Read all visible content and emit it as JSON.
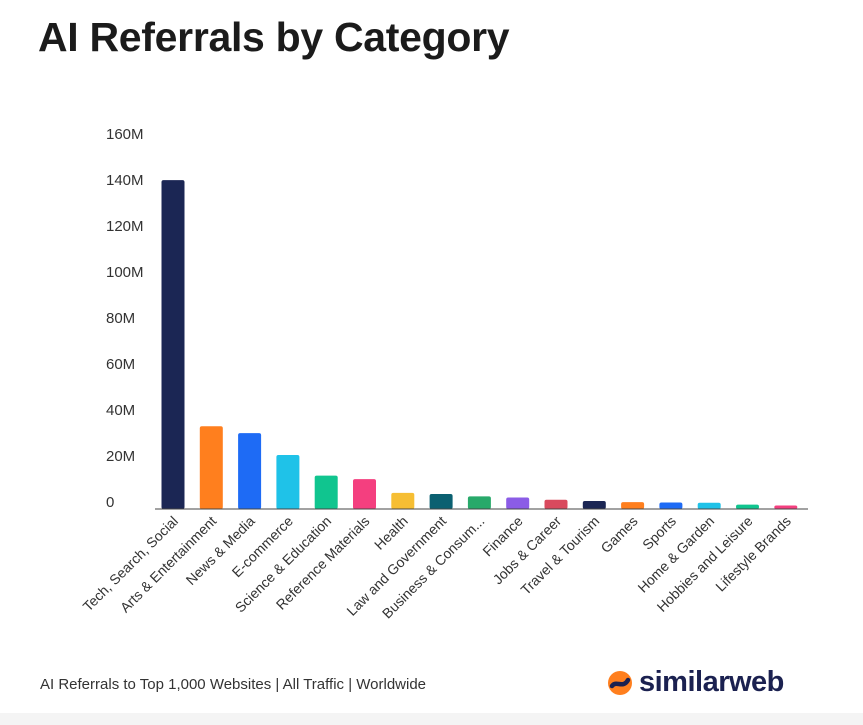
{
  "title": "AI Referrals by Category",
  "footer": "AI Referrals to Top 1,000 Websites | All Traffic | Worldwide",
  "brand": {
    "name": "similarweb",
    "icon": "similarweb-logo-icon"
  },
  "chart_data": {
    "type": "bar",
    "title": "AI Referrals by Category",
    "xlabel": "",
    "ylabel": "",
    "ylim": [
      0,
      160000000
    ],
    "ytick_values": [
      0,
      20000000,
      40000000,
      60000000,
      80000000,
      100000000,
      120000000,
      140000000,
      160000000
    ],
    "yticks": [
      "0",
      "20M",
      "40M",
      "60M",
      "80M",
      "100M",
      "120M",
      "140M",
      "160M"
    ],
    "grid": false,
    "legend": "none",
    "categories": [
      "Tech, Search, Social",
      "Arts & Entertainment",
      "News & Media",
      "E-commerce",
      "Science & Education",
      "Reference Materials",
      "Health",
      "Law and Government",
      "Business & Consum...",
      "Finance",
      "Jobs & Career",
      "Travel & Tourism",
      "Games",
      "Sports",
      "Home & Garden",
      "Hobbies and Leisure",
      "Lifestyle Brands"
    ],
    "values": [
      143000000,
      36000000,
      33000000,
      23500000,
      14500000,
      13000000,
      7000000,
      6500000,
      5500000,
      5000000,
      4000000,
      3500000,
      3000000,
      2800000,
      2700000,
      1900000,
      1500000
    ],
    "colors": [
      "#1b2654",
      "#ff7f1e",
      "#1e6bf5",
      "#1fc2e8",
      "#10c58f",
      "#f43f7f",
      "#f6be33",
      "#0b6071",
      "#28a96a",
      "#8b5ce6",
      "#d94a5e",
      "#1b2654",
      "#ff7f1e",
      "#1e6bf5",
      "#1fc2e8",
      "#10c58f",
      "#f43f7f"
    ]
  }
}
